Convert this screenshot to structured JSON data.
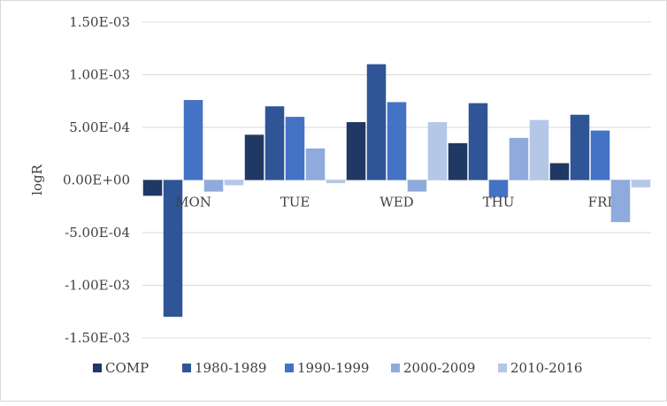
{
  "chart_data": {
    "type": "bar",
    "title": "",
    "xlabel": "",
    "ylabel": "logR",
    "categories": [
      "MON",
      "TUE",
      "WED",
      "THU",
      "FRI"
    ],
    "ylim": [
      -0.0015,
      0.0015
    ],
    "yticks": [
      0.0015,
      0.001,
      0.0005,
      0,
      -0.0005,
      -0.001,
      -0.0015
    ],
    "ytick_labels": [
      "1.50E-03",
      "1.00E-03",
      "5.00E-04",
      "0.00E+00",
      "-5.00E-04",
      "-1.00E-03",
      "-1.50E-03"
    ],
    "grid": "horizontal",
    "legend_position": "bottom",
    "series": [
      {
        "name": "COMP",
        "color": "#203864",
        "values": [
          -0.00015,
          0.00043,
          0.00055,
          0.00035,
          0.00016
        ]
      },
      {
        "name": "1980-1989",
        "color": "#2F5597",
        "values": [
          -0.0013,
          0.0007,
          0.0011,
          0.00073,
          0.00062
        ]
      },
      {
        "name": "1990-1999",
        "color": "#4472C4",
        "values": [
          0.00076,
          0.0006,
          0.00074,
          -0.00016,
          0.00047
        ]
      },
      {
        "name": "2000-2009",
        "color": "#8FAADC",
        "values": [
          -0.00011,
          0.0003,
          -0.00011,
          0.0004,
          -0.0004
        ]
      },
      {
        "name": "2010-2016",
        "color": "#B4C7E7",
        "values": [
          -5e-05,
          -3e-05,
          0.00055,
          0.00057,
          -7e-05
        ]
      }
    ]
  }
}
